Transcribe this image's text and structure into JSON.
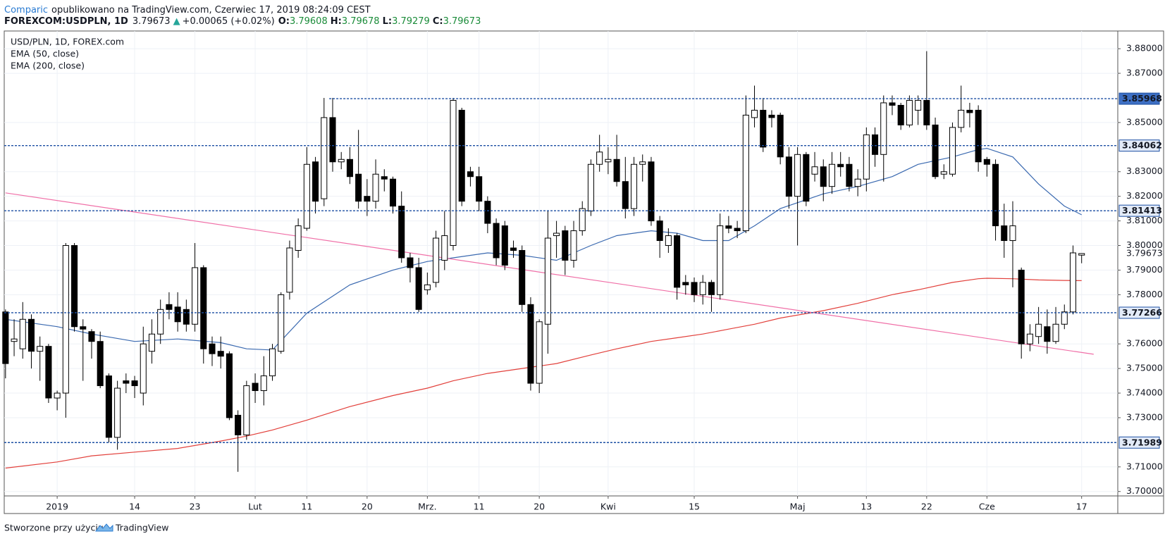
{
  "header": {
    "brand": "Comparic",
    "published": "opublikowano na TradingView.com, Czerwiec 17, 2019 08:24:09 CEST",
    "symbol": "FOREXCOM:USDPLN, 1D",
    "price": "3.79673",
    "arrow": "▲",
    "change": "+0.00065 (+0.02%)",
    "ohlc": [
      {
        "key": "O:",
        "value": "3.79608"
      },
      {
        "key": "H:",
        "value": "3.79678"
      },
      {
        "key": "L:",
        "value": "3.79279"
      },
      {
        "key": "C:",
        "value": "3.79673"
      }
    ]
  },
  "footer": {
    "text": "Stworzone przy użyciu",
    "brand": "TradingView"
  },
  "chart_data": {
    "type": "candlestick",
    "name": "USD/PLN, 1D, FOREX.com",
    "up_color": "#ffffff",
    "down_color": "#000000",
    "candles": [
      [
        3.773,
        3.774,
        3.746,
        3.752
      ],
      [
        3.761,
        3.77,
        3.755,
        3.762
      ],
      [
        3.758,
        3.777,
        3.754,
        3.77
      ],
      [
        3.77,
        3.772,
        3.75,
        3.757
      ],
      [
        3.757,
        3.763,
        3.745,
        3.759
      ],
      [
        3.759,
        3.76,
        3.736,
        3.738
      ],
      [
        3.738,
        3.741,
        3.733,
        3.74
      ],
      [
        3.74,
        3.801,
        3.73,
        3.8
      ],
      [
        3.8,
        3.801,
        3.765,
        3.767
      ],
      [
        3.767,
        3.77,
        3.745,
        3.766
      ],
      [
        3.765,
        3.766,
        3.754,
        3.761
      ],
      [
        3.761,
        3.765,
        3.742,
        3.743
      ],
      [
        3.747,
        3.748,
        3.72,
        3.722
      ],
      [
        3.722,
        3.745,
        3.717,
        3.742
      ],
      [
        3.745,
        3.748,
        3.74,
        3.744
      ],
      [
        3.745,
        3.747,
        3.738,
        3.743
      ],
      [
        3.74,
        3.767,
        3.735,
        3.76
      ],
      [
        3.757,
        3.77,
        3.752,
        3.764
      ],
      [
        3.764,
        3.778,
        3.76,
        3.774
      ],
      [
        3.776,
        3.781,
        3.77,
        3.774
      ],
      [
        3.775,
        3.781,
        3.765,
        3.769
      ],
      [
        3.774,
        3.778,
        3.765,
        3.768
      ],
      [
        3.768,
        3.801,
        3.765,
        3.791
      ],
      [
        3.791,
        3.792,
        3.752,
        3.758
      ],
      [
        3.76,
        3.763,
        3.751,
        3.756
      ],
      [
        3.757,
        3.763,
        3.75,
        3.755
      ],
      [
        3.756,
        3.757,
        3.729,
        3.73
      ],
      [
        3.731,
        3.733,
        3.708,
        3.723
      ],
      [
        3.723,
        3.745,
        3.721,
        3.743
      ],
      [
        3.744,
        3.748,
        3.736,
        3.741
      ],
      [
        3.741,
        3.755,
        3.735,
        3.747
      ],
      [
        3.747,
        3.76,
        3.745,
        3.758
      ],
      [
        3.757,
        3.781,
        3.756,
        3.78
      ],
      [
        3.781,
        3.802,
        3.778,
        3.799
      ],
      [
        3.798,
        3.811,
        3.795,
        3.808
      ],
      [
        3.807,
        3.84,
        3.806,
        3.833
      ],
      [
        3.834,
        3.836,
        3.813,
        3.818
      ],
      [
        3.819,
        3.86,
        3.816,
        3.852
      ],
      [
        3.852,
        3.86,
        3.83,
        3.834
      ],
      [
        3.834,
        3.838,
        3.831,
        3.835
      ],
      [
        3.835,
        3.84,
        3.825,
        3.828
      ],
      [
        3.829,
        3.847,
        3.815,
        3.818
      ],
      [
        3.82,
        3.827,
        3.812,
        3.818
      ],
      [
        3.818,
        3.835,
        3.815,
        3.829
      ],
      [
        3.828,
        3.831,
        3.822,
        3.827
      ],
      [
        3.827,
        3.828,
        3.813,
        3.816
      ],
      [
        3.816,
        3.822,
        3.793,
        3.795
      ],
      [
        3.795,
        3.797,
        3.785,
        3.791
      ],
      [
        3.791,
        3.795,
        3.773,
        3.774
      ],
      [
        3.782,
        3.789,
        3.78,
        3.784
      ],
      [
        3.785,
        3.806,
        3.783,
        3.803
      ],
      [
        3.794,
        3.814,
        3.79,
        3.804
      ],
      [
        3.8,
        3.86,
        3.798,
        3.859
      ],
      [
        3.855,
        3.856,
        3.816,
        3.818
      ],
      [
        3.83,
        3.832,
        3.824,
        3.828
      ],
      [
        3.828,
        3.832,
        3.814,
        3.818
      ],
      [
        3.818,
        3.82,
        3.805,
        3.809
      ],
      [
        3.809,
        3.811,
        3.792,
        3.795
      ],
      [
        3.808,
        3.81,
        3.79,
        3.792
      ],
      [
        3.799,
        3.802,
        3.795,
        3.798
      ],
      [
        3.798,
        3.8,
        3.773,
        3.776
      ],
      [
        3.776,
        3.779,
        3.741,
        3.744
      ],
      [
        3.744,
        3.77,
        3.74,
        3.769
      ],
      [
        3.768,
        3.814,
        3.756,
        3.803
      ],
      [
        3.804,
        3.81,
        3.795,
        3.805
      ],
      [
        3.806,
        3.808,
        3.788,
        3.794
      ],
      [
        3.794,
        3.81,
        3.791,
        3.806
      ],
      [
        3.806,
        3.818,
        3.804,
        3.815
      ],
      [
        3.814,
        3.835,
        3.812,
        3.833
      ],
      [
        3.833,
        3.845,
        3.83,
        3.838
      ],
      [
        3.834,
        3.84,
        3.829,
        3.835
      ],
      [
        3.835,
        3.845,
        3.824,
        3.826
      ],
      [
        3.826,
        3.836,
        3.811,
        3.815
      ],
      [
        3.815,
        3.836,
        3.812,
        3.833
      ],
      [
        3.833,
        3.837,
        3.826,
        3.834
      ],
      [
        3.834,
        3.836,
        3.808,
        3.81
      ],
      [
        3.81,
        3.812,
        3.795,
        3.802
      ],
      [
        3.8,
        3.807,
        3.797,
        3.804
      ],
      [
        3.804,
        3.805,
        3.778,
        3.783
      ],
      [
        3.785,
        3.788,
        3.78,
        3.784
      ],
      [
        3.785,
        3.787,
        3.777,
        3.78
      ],
      [
        3.78,
        3.788,
        3.776,
        3.785
      ],
      [
        3.785,
        3.786,
        3.773,
        3.78
      ],
      [
        3.78,
        3.813,
        3.778,
        3.808
      ],
      [
        3.808,
        3.812,
        3.805,
        3.807
      ],
      [
        3.807,
        3.81,
        3.803,
        3.806
      ],
      [
        3.806,
        3.861,
        3.805,
        3.853
      ],
      [
        3.852,
        3.865,
        3.848,
        3.855
      ],
      [
        3.855,
        3.86,
        3.838,
        3.84
      ],
      [
        3.853,
        3.855,
        3.848,
        3.852
      ],
      [
        3.853,
        3.854,
        3.833,
        3.836
      ],
      [
        3.836,
        3.84,
        3.815,
        3.82
      ],
      [
        3.82,
        3.84,
        3.8,
        3.837
      ],
      [
        3.837,
        3.838,
        3.816,
        3.818
      ],
      [
        3.829,
        3.838,
        3.826,
        3.832
      ],
      [
        3.832,
        3.835,
        3.818,
        3.824
      ],
      [
        3.824,
        3.838,
        3.821,
        3.833
      ],
      [
        3.833,
        3.838,
        3.828,
        3.832
      ],
      [
        3.833,
        3.836,
        3.822,
        3.824
      ],
      [
        3.824,
        3.831,
        3.82,
        3.827
      ],
      [
        3.827,
        3.848,
        3.822,
        3.845
      ],
      [
        3.845,
        3.848,
        3.832,
        3.837
      ],
      [
        3.837,
        3.861,
        3.826,
        3.858
      ],
      [
        3.858,
        3.861,
        3.853,
        3.857
      ],
      [
        3.857,
        3.858,
        3.847,
        3.849
      ],
      [
        3.849,
        3.861,
        3.848,
        3.859
      ],
      [
        3.855,
        3.861,
        3.849,
        3.859
      ],
      [
        3.859,
        3.879,
        3.847,
        3.849
      ],
      [
        3.849,
        3.852,
        3.827,
        3.828
      ],
      [
        3.829,
        3.833,
        3.827,
        3.83
      ],
      [
        3.829,
        3.85,
        3.828,
        3.848
      ],
      [
        3.848,
        3.865,
        3.846,
        3.855
      ],
      [
        3.855,
        3.858,
        3.848,
        3.854
      ],
      [
        3.855,
        3.857,
        3.83,
        3.834
      ],
      [
        3.835,
        3.836,
        3.828,
        3.833
      ],
      [
        3.833,
        3.835,
        3.802,
        3.808
      ],
      [
        3.808,
        3.817,
        3.795,
        3.802
      ],
      [
        3.802,
        3.818,
        3.783,
        3.808
      ],
      [
        3.79,
        3.791,
        3.754,
        3.76
      ],
      [
        3.76,
        3.768,
        3.757,
        3.764
      ],
      [
        3.763,
        3.775,
        3.76,
        3.768
      ],
      [
        3.767,
        3.774,
        3.756,
        3.761
      ],
      [
        3.761,
        3.775,
        3.76,
        3.768
      ],
      [
        3.768,
        3.776,
        3.766,
        3.773
      ],
      [
        3.773,
        3.8,
        3.772,
        3.797
      ],
      [
        3.79608,
        3.79678,
        3.79279,
        3.79673
      ]
    ],
    "ema_x": [
      0,
      6,
      10,
      15,
      20,
      25,
      28,
      31,
      35,
      40,
      45,
      49,
      52,
      56,
      60,
      64,
      68,
      71,
      75,
      78,
      81,
      84,
      87,
      90,
      95,
      99,
      103,
      106,
      110,
      113,
      114,
      117,
      120,
      123,
      125
    ],
    "series": [
      {
        "name": "EMA (50, close)",
        "color": "#3a69b0",
        "values": [
          3.77,
          3.767,
          3.764,
          3.761,
          3.762,
          3.7605,
          3.758,
          3.7575,
          3.7725,
          3.784,
          3.79,
          3.7935,
          3.795,
          3.797,
          3.796,
          3.794,
          3.8,
          3.804,
          3.806,
          3.805,
          3.802,
          3.802,
          3.808,
          3.815,
          3.821,
          3.824,
          3.828,
          3.833,
          3.836,
          3.839,
          3.8395,
          3.836,
          3.825,
          3.816,
          3.8125
        ]
      },
      {
        "name": "EMA (200, close)",
        "color": "#e2403b",
        "values": [
          3.7095,
          3.712,
          3.7145,
          3.716,
          3.7175,
          3.7205,
          3.7225,
          3.725,
          3.729,
          3.7345,
          3.739,
          3.742,
          3.745,
          3.748,
          3.75,
          3.752,
          3.7555,
          3.758,
          3.761,
          3.7625,
          3.764,
          3.766,
          3.768,
          3.7705,
          3.7735,
          3.7765,
          3.78,
          3.782,
          3.785,
          3.7865,
          3.7867,
          3.7865,
          3.786,
          3.7858,
          3.7857
        ]
      }
    ],
    "trendline": {
      "x": [
        0,
        126.4
      ],
      "values": [
        3.8214,
        3.7558
      ],
      "color": "#f06fa7"
    },
    "level_color": "#1c4fa3",
    "levels": [
      {
        "value": 3.85968,
        "x_start": 37.6,
        "selected": true
      },
      {
        "value": 3.84062
      },
      {
        "value": 3.81413
      },
      {
        "value": 3.77266
      },
      {
        "value": 3.71989
      }
    ],
    "last": 3.79673,
    "xlim": [
      -0.15,
      129.2
    ],
    "ylim": [
      3.6982,
      3.8872
    ],
    "grid": true,
    "yticks": [
      {
        "value": 3.7,
        "label": "3.70000"
      },
      {
        "value": 3.71,
        "label": "3.71000"
      },
      {
        "value": 3.73,
        "label": "3.73000"
      },
      {
        "value": 3.74,
        "label": "3.74000"
      },
      {
        "value": 3.75,
        "label": "3.75000"
      },
      {
        "value": 3.76,
        "label": "3.76000"
      },
      {
        "value": 3.78,
        "label": "3.78000"
      },
      {
        "value": 3.79,
        "label": "3.79000"
      },
      {
        "value": 3.8,
        "label": "3.80000"
      },
      {
        "value": 3.81,
        "label": "3.81000"
      },
      {
        "value": 3.82,
        "label": "3.82000"
      },
      {
        "value": 3.83,
        "label": "3.83000"
      },
      {
        "value": 3.85,
        "label": "3.85000"
      },
      {
        "value": 3.87,
        "label": "3.87000"
      },
      {
        "value": 3.88,
        "label": "3.88000"
      }
    ],
    "xticks": [
      {
        "value": 6,
        "label": "2019"
      },
      {
        "value": 15,
        "label": "14"
      },
      {
        "value": 22,
        "label": "23"
      },
      {
        "value": 29,
        "label": "Lut"
      },
      {
        "value": 35,
        "label": "11"
      },
      {
        "value": 42,
        "label": "20"
      },
      {
        "value": 49,
        "label": "Mrz."
      },
      {
        "value": 55,
        "label": "11"
      },
      {
        "value": 62,
        "label": "20"
      },
      {
        "value": 70,
        "label": "Kwi"
      },
      {
        "value": 80,
        "label": "15"
      },
      {
        "value": 92,
        "label": "Maj"
      },
      {
        "value": 100,
        "label": "13"
      },
      {
        "value": 107,
        "label": "22"
      },
      {
        "value": 114,
        "label": "Cze"
      },
      {
        "value": 125,
        "label": "17"
      }
    ]
  }
}
